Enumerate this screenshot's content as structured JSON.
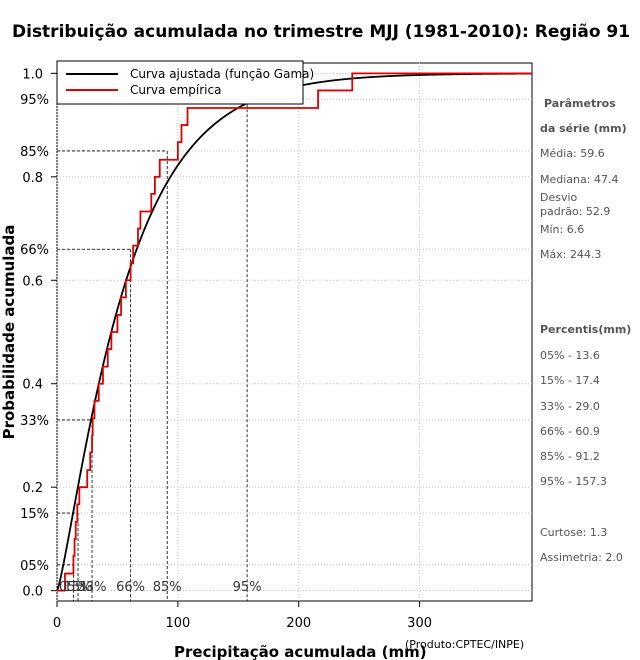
{
  "chart_data": {
    "type": "line",
    "title": "Distribuição acumulada no trimestre MJJ (1981-2010): Região 91",
    "xlabel": "Precipitação acumulada (mm)",
    "ylabel": "Probabilidade acumulada",
    "credit": "(Produto:CPTEC/INPE)",
    "xlim": [
      0,
      393
    ],
    "ylim": [
      -0.02,
      1.02
    ],
    "x_ticks": [
      0,
      100,
      200,
      300
    ],
    "y_ticks": [
      0.0,
      0.2,
      0.4,
      0.6,
      0.8,
      1.0
    ],
    "y_tick_labels": [
      "0.0",
      "0.2",
      "0.4",
      "0.6",
      "0.8",
      "1.0"
    ],
    "legend": [
      "Curva ajustada (função Gama)",
      "Curva empírica"
    ],
    "series": [
      {
        "name": "Curva ajustada (função Gama)",
        "color": "#000000",
        "shape": 1.27,
        "mean": 59.6
      },
      {
        "name": "Curva empírica",
        "color": "#dd0000",
        "steps": [
          [
            6.6,
            0.033
          ],
          [
            13.6,
            0.067
          ],
          [
            14.5,
            0.1
          ],
          [
            15.5,
            0.133
          ],
          [
            16.8,
            0.167
          ],
          [
            18.5,
            0.2
          ],
          [
            25.0,
            0.233
          ],
          [
            27.5,
            0.267
          ],
          [
            29.0,
            0.3
          ],
          [
            29.5,
            0.333
          ],
          [
            31.0,
            0.367
          ],
          [
            34.5,
            0.4
          ],
          [
            38.0,
            0.433
          ],
          [
            42.0,
            0.467
          ],
          [
            45.0,
            0.5
          ],
          [
            50.0,
            0.533
          ],
          [
            53.0,
            0.567
          ],
          [
            57.0,
            0.6
          ],
          [
            60.9,
            0.633
          ],
          [
            63.0,
            0.667
          ],
          [
            67.0,
            0.7
          ],
          [
            69.0,
            0.733
          ],
          [
            78.0,
            0.767
          ],
          [
            81.0,
            0.8
          ],
          [
            85.0,
            0.833
          ],
          [
            100.0,
            0.867
          ],
          [
            103.0,
            0.9
          ],
          [
            108.0,
            0.933
          ],
          [
            216.0,
            0.967
          ],
          [
            244.3,
            1.0
          ]
        ]
      }
    ],
    "percentile_markers": [
      {
        "label": "05%",
        "p": 0.05,
        "x": 13.6
      },
      {
        "label": "15%",
        "p": 0.15,
        "x": 17.4
      },
      {
        "label": "33%",
        "p": 0.33,
        "x": 29.0
      },
      {
        "label": "66%",
        "p": 0.66,
        "x": 60.9
      },
      {
        "label": "85%",
        "p": 0.85,
        "x": 91.2
      },
      {
        "label": "95%",
        "p": 0.95,
        "x": 157.3
      }
    ]
  },
  "side_panel": {
    "params_heading_1": "Parâmetros",
    "params_heading_2": "da série (mm)",
    "media": "Média: 59.6",
    "mediana": "Mediana: 47.4",
    "desvio_1": "Desvio",
    "desvio_2": "padrão: 52.9",
    "min": "Mín: 6.6",
    "max": "Máx: 244.3",
    "percentis_heading": "Percentis(mm)",
    "percentis": [
      "05% - 13.6",
      "15% - 17.4",
      "33% - 29.0",
      "66% - 60.9",
      "85% - 91.2",
      "95% - 157.3"
    ],
    "curtose": "Curtose: 1.3",
    "assimetria": "Assimetria: 2.0"
  }
}
